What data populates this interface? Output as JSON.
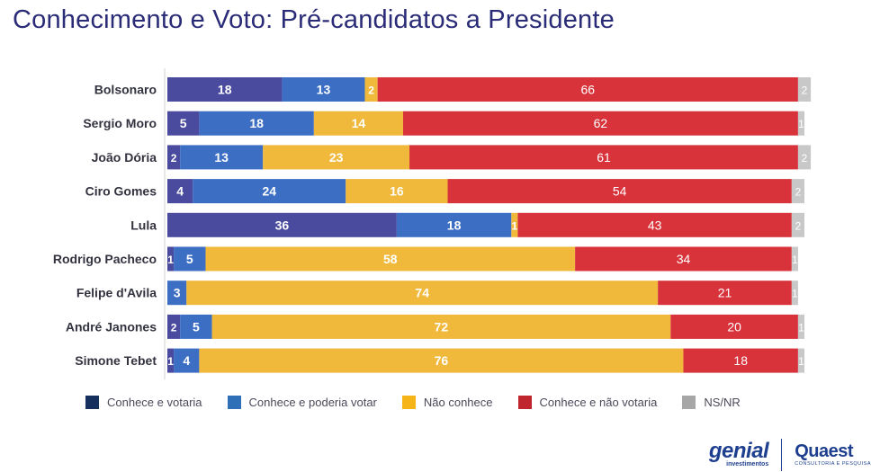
{
  "title": "Conhecimento e Voto: Pré-candidatos a Presidente",
  "chart_data": {
    "type": "bar",
    "orientation": "horizontal",
    "stacked": true,
    "categories": [
      "Bolsonaro",
      "Sergio Moro",
      "João Dória",
      "Ciro Gomes",
      "Lula",
      "Rodrigo Pacheco",
      "Felipe d'Avila",
      "André Janones",
      "Simone Tebet"
    ],
    "series": [
      {
        "name": "Conhece e votaria",
        "color": "#4a4a9e",
        "values": [
          18,
          5,
          2,
          4,
          36,
          1,
          0,
          2,
          1
        ]
      },
      {
        "name": "Conhece e poderia votar",
        "color": "#3c6fc4",
        "values": [
          13,
          18,
          13,
          24,
          18,
          5,
          3,
          5,
          4
        ]
      },
      {
        "name": "Não conhece",
        "color": "#f0b93c",
        "values": [
          2,
          14,
          23,
          16,
          1,
          58,
          74,
          72,
          76
        ]
      },
      {
        "name": "Conhece e não votaria",
        "color": "#d8323a",
        "values": [
          66,
          62,
          61,
          54,
          43,
          34,
          21,
          20,
          18
        ]
      },
      {
        "name": "NS/NR",
        "color": "#c8c8c8",
        "values": [
          2,
          1,
          2,
          2,
          2,
          1,
          1,
          1,
          1
        ]
      }
    ],
    "xlim": [
      0,
      100
    ],
    "legend_position": "bottom"
  },
  "legend": [
    {
      "label": "Conhece e votaria",
      "color": "#16305e"
    },
    {
      "label": "Conhece e poderia votar",
      "color": "#2e6fb7"
    },
    {
      "label": "Não conhece",
      "color": "#f5b519"
    },
    {
      "label": "Conhece e não votaria",
      "color": "#c0262d"
    },
    {
      "label": "NS/NR",
      "color": "#a6a6a6"
    }
  ],
  "logos": {
    "genial_word": "genial",
    "genial_sub": "investimentos",
    "quaest_word": "Quaest",
    "quaest_sub": "CONSULTORIA E PESQUISA"
  }
}
